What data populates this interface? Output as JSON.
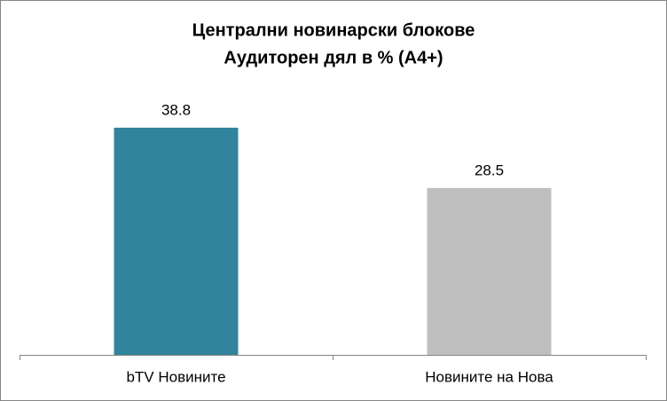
{
  "chart_data": {
    "type": "bar",
    "title": "Централни новинарски блокове",
    "subtitle": "Аудиторен дял в % (А4+)",
    "categories": [
      "bTV Новините",
      "Новините на Нова"
    ],
    "values": [
      38.8,
      28.5
    ],
    "colors": [
      "#31849b",
      "#bfbfbf"
    ],
    "ylim": [
      0,
      45
    ]
  }
}
